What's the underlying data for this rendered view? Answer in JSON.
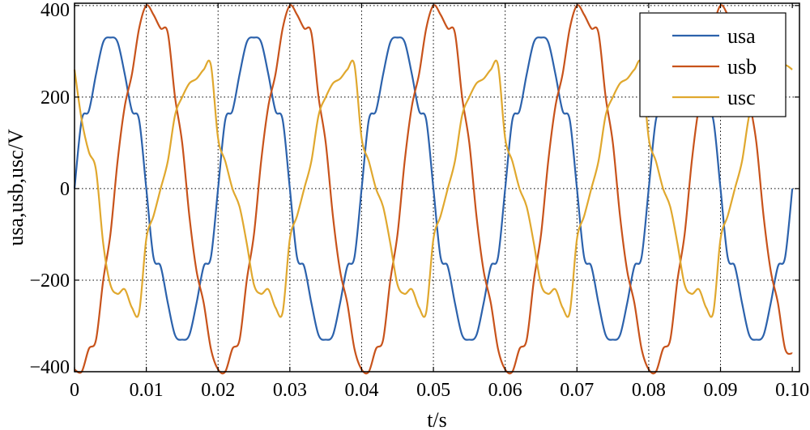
{
  "chart_data": {
    "type": "line",
    "xlabel": "t/s",
    "ylabel": "usa,usb,usc/V",
    "xlim": [
      0,
      0.101
    ],
    "ylim": [
      -400,
      405
    ],
    "x_ticks": [
      "0",
      "0.01",
      "0.02",
      "0.03",
      "0.04",
      "0.05",
      "0.06",
      "0.07",
      "0.08",
      "0.09",
      "0.10"
    ],
    "x_tick_values": [
      0,
      0.01,
      0.02,
      0.03,
      0.04,
      0.05,
      0.06,
      0.07,
      0.08,
      0.09,
      0.1
    ],
    "y_ticks": [
      "−400",
      "−200",
      "0",
      "200",
      "400"
    ],
    "y_tick_values": [
      -400,
      -200,
      0,
      200,
      400
    ],
    "grid": true,
    "legend_position": "top-right",
    "series": [
      {
        "name": "usa",
        "color": "#2c62ac",
        "x": [
          0,
          0.001,
          0.002,
          0.003,
          0.004,
          0.005,
          0.006,
          0.007,
          0.008,
          0.009,
          0.01,
          0.011,
          0.012,
          0.013,
          0.014,
          0.015,
          0.016,
          0.017,
          0.018,
          0.019,
          0.02,
          0.021,
          0.022,
          0.023,
          0.024,
          0.025,
          0.026,
          0.027,
          0.028,
          0.029,
          0.03,
          0.031,
          0.032,
          0.033,
          0.034,
          0.035,
          0.036,
          0.037,
          0.038,
          0.039,
          0.04,
          0.041,
          0.042,
          0.043,
          0.044,
          0.045,
          0.046,
          0.047,
          0.048,
          0.049,
          0.05,
          0.051,
          0.052,
          0.053,
          0.054,
          0.055,
          0.056,
          0.057,
          0.058,
          0.059,
          0.06,
          0.061,
          0.062,
          0.063,
          0.064,
          0.065,
          0.066,
          0.067,
          0.068,
          0.069,
          0.07,
          0.071,
          0.072,
          0.073,
          0.074,
          0.075,
          0.076,
          0.077,
          0.078,
          0.079,
          0.08,
          0.081,
          0.082,
          0.083,
          0.084,
          0.085,
          0.086,
          0.087,
          0.088,
          0.089,
          0.09,
          0.091,
          0.092,
          0.093,
          0.094,
          0.095,
          0.096,
          0.097,
          0.098,
          0.099,
          0.1
        ],
        "values": [
          0,
          150,
          170,
          250,
          320,
          330,
          320,
          250,
          170,
          150,
          0,
          -150,
          -170,
          -250,
          -320,
          -330,
          -320,
          -250,
          -170,
          -150,
          0,
          150,
          170,
          250,
          320,
          330,
          320,
          250,
          170,
          150,
          0,
          -150,
          -170,
          -250,
          -320,
          -330,
          -320,
          -250,
          -170,
          -150,
          0,
          150,
          170,
          250,
          320,
          330,
          320,
          250,
          170,
          150,
          0,
          -150,
          -170,
          -250,
          -320,
          -330,
          -320,
          -250,
          -170,
          -150,
          0,
          150,
          170,
          250,
          320,
          330,
          320,
          250,
          170,
          150,
          0,
          -150,
          -170,
          -250,
          -320,
          -330,
          -320,
          -250,
          -170,
          -150,
          0,
          150,
          170,
          250,
          320,
          330,
          320,
          250,
          170,
          150,
          0,
          -150,
          -170,
          -250,
          -320,
          -330,
          -320,
          -250,
          -170,
          -150,
          0
        ]
      },
      {
        "name": "usb",
        "color": "#c8531b",
        "x": [
          0,
          0.001,
          0.002,
          0.003,
          0.004,
          0.005,
          0.006,
          0.007,
          0.008,
          0.009,
          0.01,
          0.011,
          0.012,
          0.013,
          0.014,
          0.015,
          0.016,
          0.017,
          0.018,
          0.019,
          0.02,
          0.021,
          0.022,
          0.023,
          0.024,
          0.025,
          0.026,
          0.027,
          0.028,
          0.029,
          0.03,
          0.031,
          0.032,
          0.033,
          0.034,
          0.035,
          0.036,
          0.037,
          0.038,
          0.039,
          0.04,
          0.041,
          0.042,
          0.043,
          0.044,
          0.045,
          0.046,
          0.047,
          0.048,
          0.049,
          0.05,
          0.051,
          0.052,
          0.053,
          0.054,
          0.055,
          0.056,
          0.057,
          0.058,
          0.059,
          0.06,
          0.061,
          0.062,
          0.063,
          0.064,
          0.065,
          0.066,
          0.067,
          0.068,
          0.069,
          0.07,
          0.071,
          0.072,
          0.073,
          0.074,
          0.075,
          0.076,
          0.077,
          0.078,
          0.079,
          0.08,
          0.081,
          0.082,
          0.083,
          0.084,
          0.085,
          0.086,
          0.087,
          0.088,
          0.089,
          0.09,
          0.091,
          0.092,
          0.093,
          0.094,
          0.095,
          0.096,
          0.097,
          0.098,
          0.099,
          0.1
        ],
        "values": [
          -395,
          -400,
          -350,
          -330,
          -200,
          -100,
          60,
          180,
          250,
          350,
          400,
          380,
          350,
          340,
          200,
          100,
          -60,
          -180,
          -250,
          -350,
          -395,
          -400,
          -350,
          -330,
          -200,
          -100,
          60,
          180,
          250,
          350,
          400,
          380,
          350,
          340,
          200,
          100,
          -60,
          -180,
          -250,
          -350,
          -395,
          -400,
          -350,
          -330,
          -200,
          -100,
          60,
          180,
          250,
          350,
          400,
          380,
          350,
          340,
          200,
          100,
          -60,
          -180,
          -250,
          -350,
          -395,
          -400,
          -350,
          -330,
          -200,
          -100,
          60,
          180,
          250,
          350,
          400,
          380,
          350,
          340,
          200,
          100,
          -60,
          -180,
          -250,
          -350,
          -395,
          -400,
          -350,
          -330,
          -200,
          -100,
          60,
          180,
          250,
          350,
          400,
          380,
          350,
          340,
          200,
          100,
          -60,
          -180,
          -250,
          -350,
          -360
        ]
      },
      {
        "name": "usc",
        "color": "#e0a82e",
        "x": [
          0,
          0.001,
          0.002,
          0.003,
          0.004,
          0.005,
          0.006,
          0.007,
          0.008,
          0.009,
          0.01,
          0.011,
          0.012,
          0.013,
          0.014,
          0.015,
          0.016,
          0.017,
          0.018,
          0.019,
          0.02,
          0.021,
          0.022,
          0.023,
          0.024,
          0.025,
          0.026,
          0.027,
          0.028,
          0.029,
          0.03,
          0.031,
          0.032,
          0.033,
          0.034,
          0.035,
          0.036,
          0.037,
          0.038,
          0.039,
          0.04,
          0.041,
          0.042,
          0.043,
          0.044,
          0.045,
          0.046,
          0.047,
          0.048,
          0.049,
          0.05,
          0.051,
          0.052,
          0.053,
          0.054,
          0.055,
          0.056,
          0.057,
          0.058,
          0.059,
          0.06,
          0.061,
          0.062,
          0.063,
          0.064,
          0.065,
          0.066,
          0.067,
          0.068,
          0.069,
          0.07,
          0.071,
          0.072,
          0.073,
          0.074,
          0.075,
          0.076,
          0.077,
          0.078,
          0.079,
          0.08,
          0.081,
          0.082,
          0.083,
          0.084,
          0.085,
          0.086,
          0.087,
          0.088,
          0.089,
          0.09,
          0.091,
          0.092,
          0.093,
          0.094,
          0.095,
          0.096,
          0.097,
          0.098,
          0.099,
          0.1
        ],
        "values": [
          260,
          150,
          80,
          40,
          -120,
          -210,
          -230,
          -220,
          -260,
          -270,
          -110,
          -60,
          0,
          60,
          160,
          200,
          230,
          240,
          260,
          270,
          110,
          60,
          0,
          -40,
          -120,
          -210,
          -230,
          -220,
          -260,
          -270,
          -110,
          -60,
          0,
          60,
          160,
          200,
          230,
          240,
          260,
          270,
          110,
          60,
          0,
          -40,
          -120,
          -210,
          -230,
          -220,
          -260,
          -270,
          -110,
          -60,
          0,
          60,
          160,
          200,
          230,
          240,
          260,
          270,
          110,
          60,
          0,
          -40,
          -120,
          -210,
          -230,
          -220,
          -260,
          -270,
          -110,
          -60,
          0,
          60,
          160,
          200,
          230,
          240,
          260,
          270,
          110,
          60,
          0,
          -40,
          -120,
          -210,
          -230,
          -220,
          -260,
          -270,
          -110,
          -60,
          0,
          60,
          160,
          200,
          230,
          240,
          260,
          270,
          260
        ]
      }
    ]
  }
}
